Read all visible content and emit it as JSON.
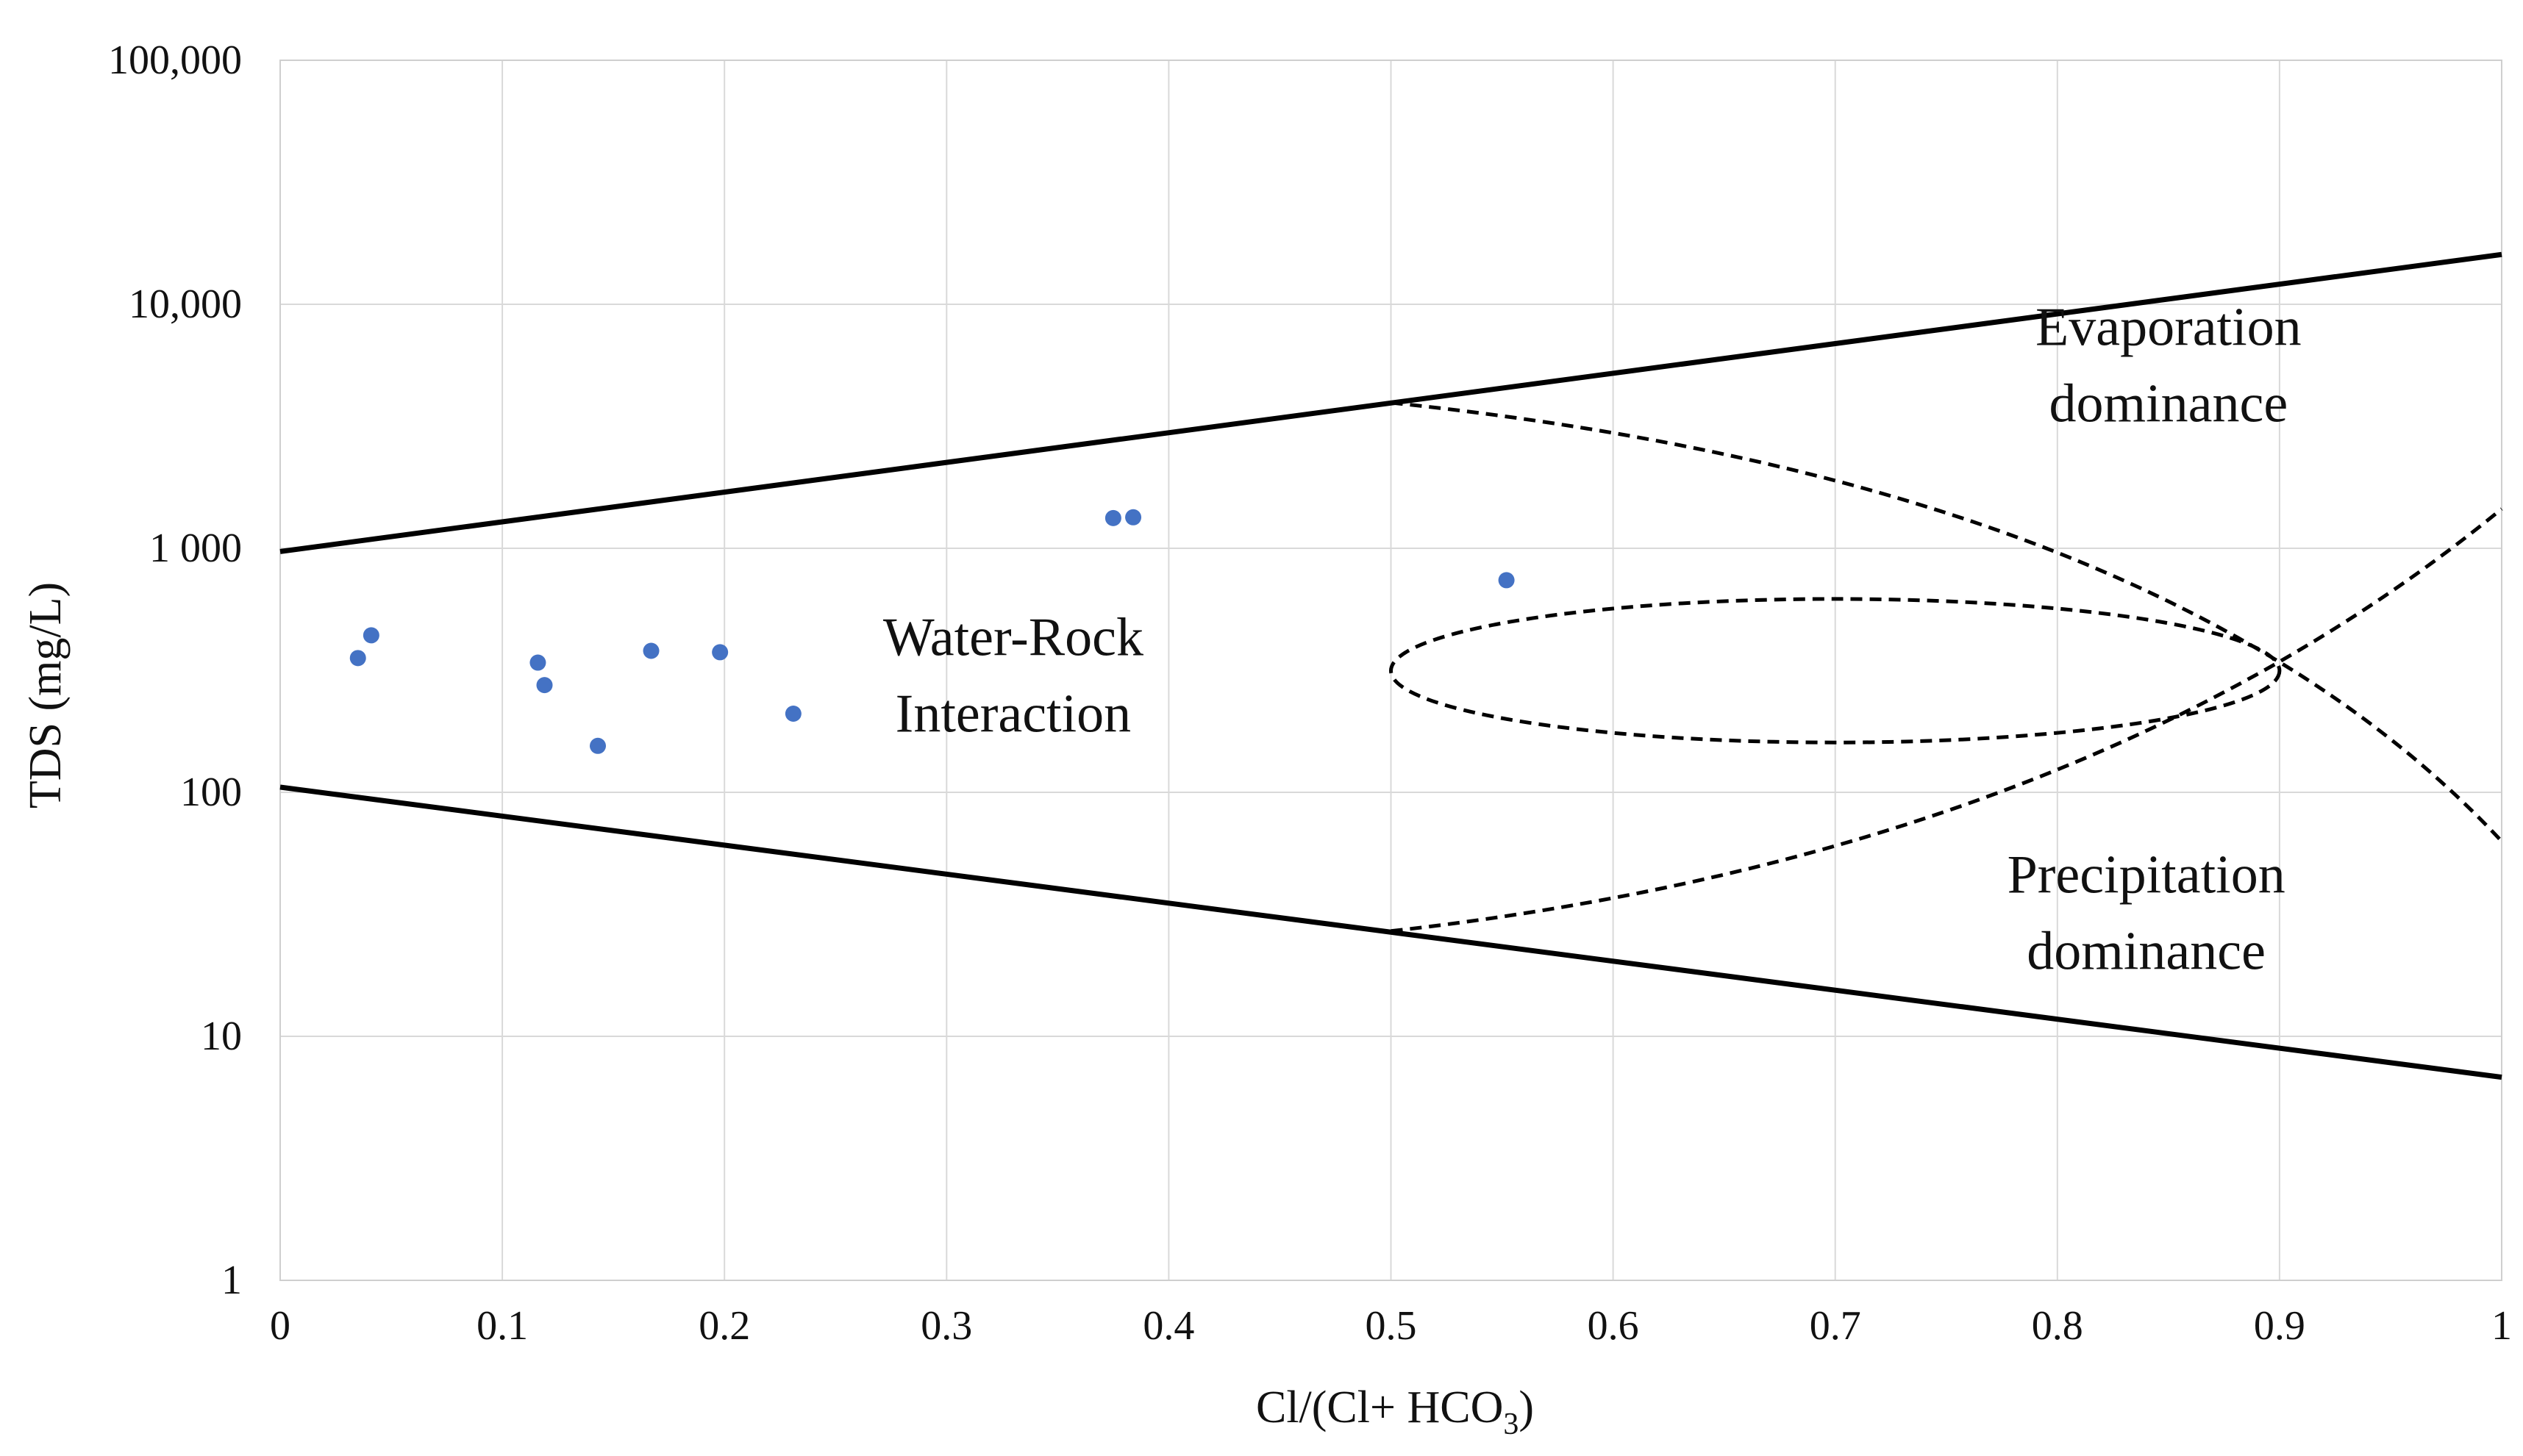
{
  "chart_data": {
    "type": "scatter",
    "title": "",
    "xlabel": "Cl/(Cl+ HCO",
    "xlabel_subscript": "3",
    "xlabel_close": ")",
    "ylabel": "TDS (mg/L)",
    "x_scale": "linear",
    "y_scale": "log",
    "xlim": [
      0,
      1
    ],
    "ylim": [
      1,
      100000
    ],
    "grid": true,
    "x_ticks": [
      {
        "value": 0,
        "label": "0"
      },
      {
        "value": 0.1,
        "label": "0.1"
      },
      {
        "value": 0.2,
        "label": "0.2"
      },
      {
        "value": 0.3,
        "label": "0.3"
      },
      {
        "value": 0.4,
        "label": "0.4"
      },
      {
        "value": 0.5,
        "label": "0.5"
      },
      {
        "value": 0.6,
        "label": "0.6"
      },
      {
        "value": 0.7,
        "label": "0.7"
      },
      {
        "value": 0.8,
        "label": "0.8"
      },
      {
        "value": 0.9,
        "label": "0.9"
      },
      {
        "value": 1,
        "label": "1"
      }
    ],
    "y_ticks": [
      {
        "value": 1,
        "label": "1"
      },
      {
        "value": 10,
        "label": "10"
      },
      {
        "value": 100,
        "label": "100"
      },
      {
        "value": 1000,
        "label": "1 000"
      },
      {
        "value": 10000,
        "label": "10,000"
      },
      {
        "value": 100000,
        "label": "100,000"
      }
    ],
    "series": [
      {
        "name": "Samples",
        "color": "#4472c4",
        "points": [
          {
            "x": 0.035,
            "y": 355
          },
          {
            "x": 0.041,
            "y": 440
          },
          {
            "x": 0.116,
            "y": 340
          },
          {
            "x": 0.119,
            "y": 275
          },
          {
            "x": 0.143,
            "y": 155
          },
          {
            "x": 0.167,
            "y": 380
          },
          {
            "x": 0.198,
            "y": 375
          },
          {
            "x": 0.231,
            "y": 210
          },
          {
            "x": 0.375,
            "y": 1330
          },
          {
            "x": 0.384,
            "y": 1340
          },
          {
            "x": 0.552,
            "y": 740
          }
        ]
      }
    ],
    "boundary_lines": [
      {
        "name": "upper-boundary",
        "style": "solid",
        "x": [
          0,
          1
        ],
        "y": [
          970,
          16000
        ]
      },
      {
        "name": "lower-boundary",
        "style": "solid",
        "x": [
          0,
          1
        ],
        "y": [
          105,
          6.8
        ]
      }
    ],
    "dashed_curves": [
      {
        "name": "evaporation-trend",
        "style": "dashed",
        "x": [
          0.5,
          0.8,
          1.0
        ],
        "y": [
          3950,
          960,
          63
        ]
      },
      {
        "name": "precipitation-trend",
        "style": "dashed",
        "x": [
          0.5,
          0.78,
          1.0
        ],
        "y": [
          27,
          105,
          1450
        ]
      },
      {
        "name": "water-rock-ellipse",
        "style": "dashed",
        "center_x": 0.7,
        "center_y": 315,
        "half_width_x": 0.2,
        "y_top": 620,
        "y_bottom": 160
      }
    ],
    "annotations": [
      {
        "name": "water-rock-label",
        "lines": [
          "Water-Rock",
          "Interaction"
        ],
        "x": 0.33,
        "y": 300
      },
      {
        "name": "evaporation-label",
        "lines": [
          "Evaporation",
          "dominance"
        ],
        "x": 0.85,
        "y": 5600
      },
      {
        "name": "precipitation-label",
        "lines": [
          "Precipitation",
          "dominance"
        ],
        "x": 0.84,
        "y": 32
      }
    ]
  }
}
